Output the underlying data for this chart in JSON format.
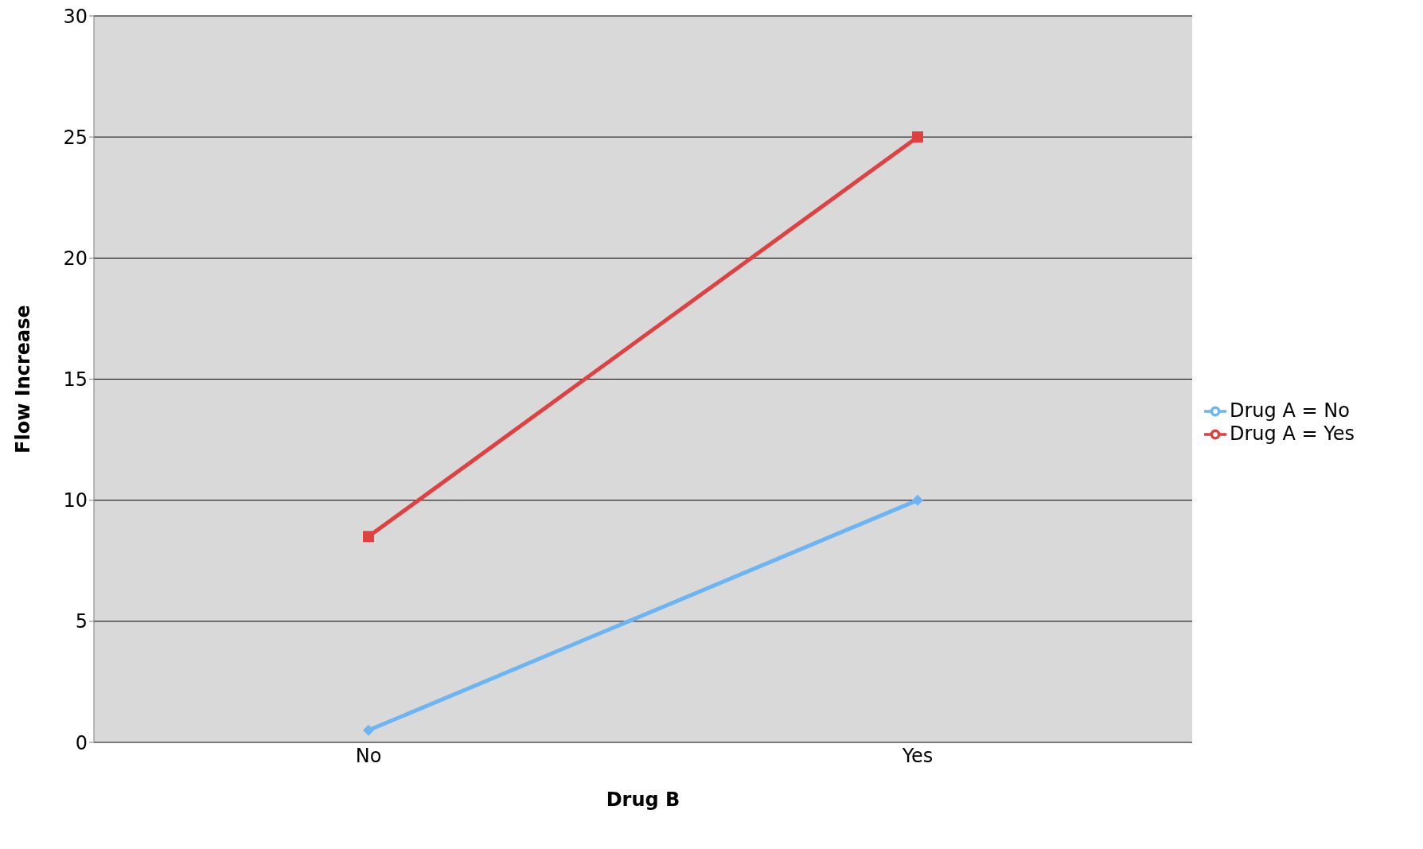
{
  "chart_data": {
    "type": "line",
    "xlabel": "Drug B",
    "ylabel": "Flow Increase",
    "categories": [
      "No",
      "Yes"
    ],
    "series": [
      {
        "name": "Drug A = No",
        "color": "#6bb5f5",
        "values": [
          0.5,
          10
        ],
        "marker": "diamond"
      },
      {
        "name": "Drug A = Yes",
        "color": "#e04040",
        "values": [
          8.5,
          25
        ],
        "marker": "square"
      }
    ],
    "ylim": [
      0,
      30
    ],
    "yticks": [
      0,
      5,
      10,
      15,
      20,
      25,
      30
    ],
    "grid": "y",
    "legend": "right",
    "line_style": "solid"
  }
}
